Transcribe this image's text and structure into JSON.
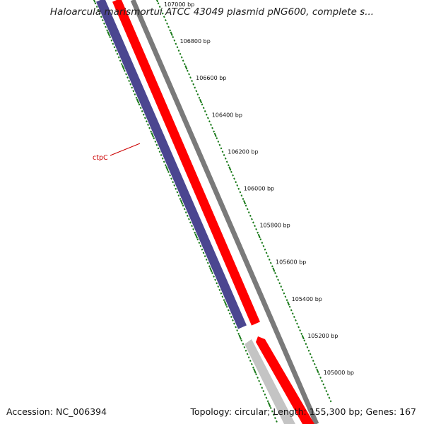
{
  "header": {
    "title": "Haloarcula marismortui ATCC 43049 plasmid pNG600, complete s..."
  },
  "footer": {
    "accession": "Accession: NC_006394",
    "summary": "Topology: circular; Length: 155,300 bp; Genes: 167"
  },
  "map": {
    "tick_labels": [
      "107000 bp",
      "106800 bp",
      "106600 bp",
      "106400 bp",
      "106200 bp",
      "106000 bp",
      "105800 bp",
      "105600 bp",
      "105400 bp",
      "105200 bp",
      "105000 bp"
    ],
    "gene_labels": [
      "ctpC"
    ],
    "colors": {
      "forward_cds": "#ff0000",
      "reverse_cds": "#4b4690",
      "other_feature": "#c4c4c4",
      "backbone": "#7a7a7a",
      "ticks": "#1a7a1a",
      "gene_label": "#cc0000"
    }
  }
}
